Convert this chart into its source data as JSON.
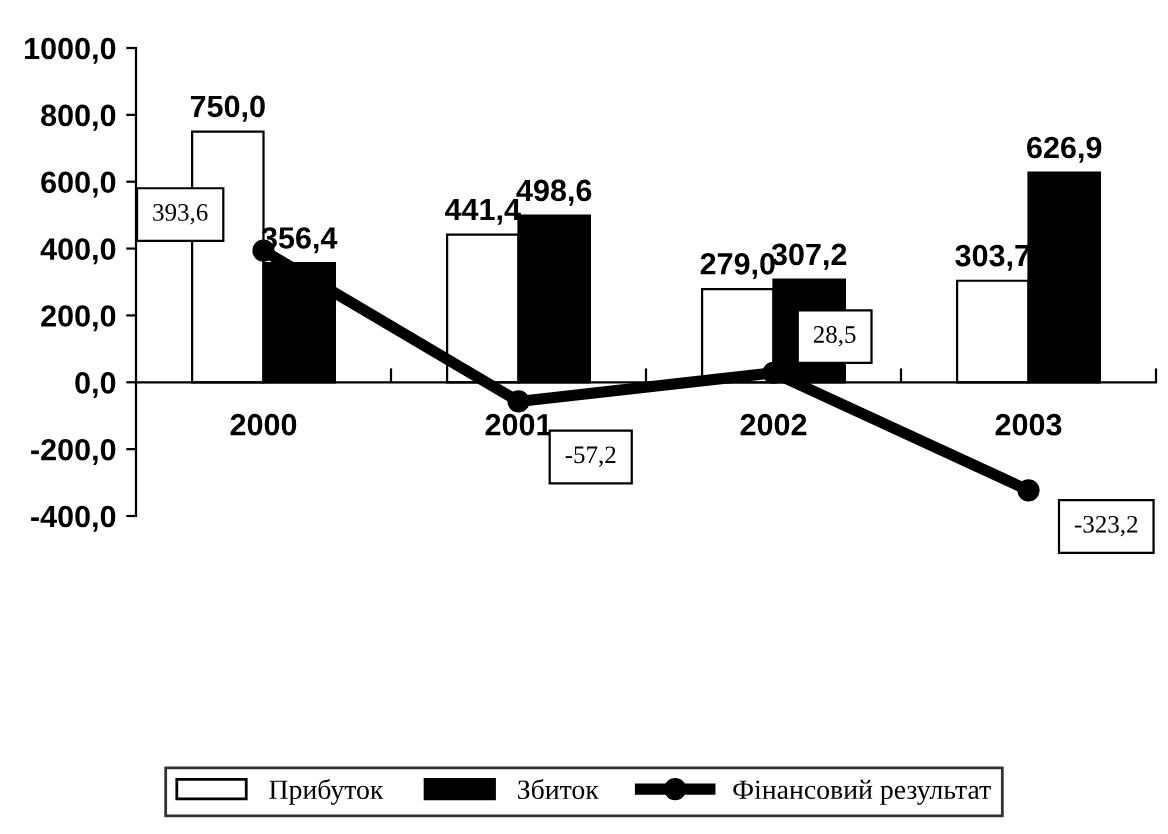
{
  "chart_data": {
    "type": "bar",
    "categories": [
      "2000",
      "2001",
      "2002",
      "2003"
    ],
    "series": [
      {
        "name": "Прибуток",
        "color": "#ffffff",
        "values": [
          750.0,
          441.4,
          279.0,
          303.7
        ],
        "value_labels": [
          "750,0",
          "441,4",
          "279,0",
          "303,7"
        ]
      },
      {
        "name": "Збиток",
        "color": "#000000",
        "values": [
          356.4,
          498.6,
          307.2,
          626.9
        ],
        "value_labels": [
          "356,4",
          "498,6",
          "307,2",
          "626,9"
        ]
      },
      {
        "name": "Фінансовий результат",
        "type": "line",
        "color": "#000000",
        "marker": "circle",
        "line_style": "solid",
        "values": [
          393.6,
          -57.2,
          28.5,
          -323.2
        ],
        "value_labels": [
          "393,6",
          "-57,2",
          "28,5",
          "-323,2"
        ]
      }
    ],
    "ylim": [
      -400,
      1000
    ],
    "yticks": [
      {
        "value": -400,
        "label": "-400,0"
      },
      {
        "value": -200,
        "label": "-200,0"
      },
      {
        "value": 0,
        "label": "0,0"
      },
      {
        "value": 200,
        "label": "200,0"
      },
      {
        "value": 400,
        "label": "400,0"
      },
      {
        "value": 600,
        "label": "600,0"
      },
      {
        "value": 800,
        "label": "800,0"
      },
      {
        "value": 1000,
        "label": "1000,0"
      }
    ],
    "grid": false,
    "legend": "bottom"
  }
}
